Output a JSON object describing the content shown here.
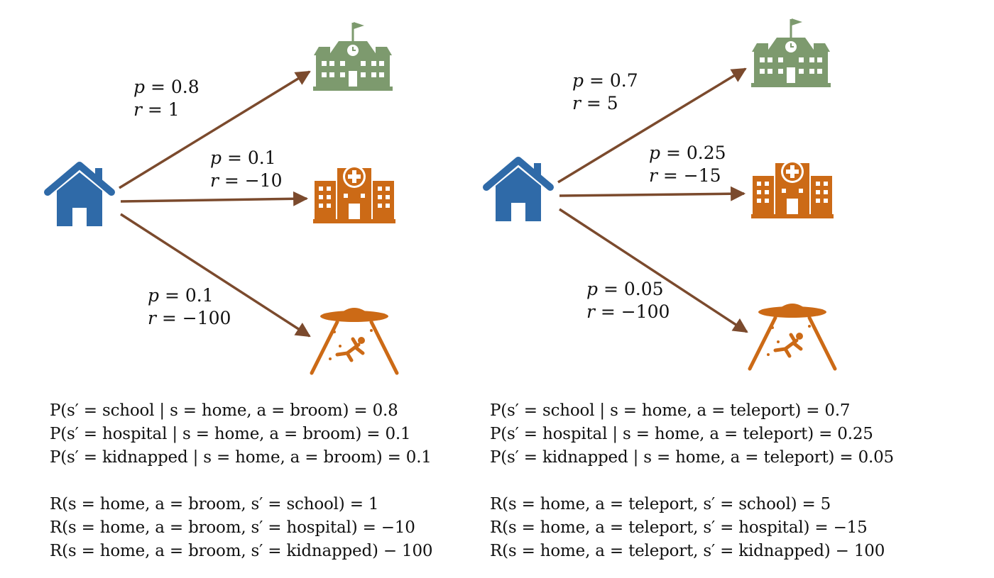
{
  "colors": {
    "arrow": "#7b4a2d",
    "home": "#2f6aa8",
    "school": "#7d9a6e",
    "hospital": "#cc6a16",
    "ufo": "#cc6a16"
  },
  "icons": [
    "home-icon",
    "school-icon",
    "hospital-icon",
    "ufo-abduction-icon"
  ],
  "left": {
    "action": "broom",
    "edges": [
      {
        "target": "school",
        "p": "0.8",
        "r": "1"
      },
      {
        "target": "hospital",
        "p": "0.1",
        "r": "−10"
      },
      {
        "target": "kidnapped",
        "p": "0.1",
        "r": "−100"
      }
    ],
    "transitions": [
      "P(s′ = school | s = home, a = broom) = 0.8",
      "P(s′ = hospital | s = home, a = broom) = 0.1",
      "P(s′ = kidnapped | s = home, a = broom) = 0.1"
    ],
    "rewards": [
      "R(s = home, a = broom, s′ = school) = 1",
      "R(s = home, a = broom, s′ = hospital) = −10",
      "R(s = home, a = broom, s′ = kidnapped) − 100"
    ]
  },
  "right": {
    "action": "teleport",
    "edges": [
      {
        "target": "school",
        "p": "0.7",
        "r": "5"
      },
      {
        "target": "hospital",
        "p": "0.25",
        "r": "−15"
      },
      {
        "target": "kidnapped",
        "p": "0.05",
        "r": "−100"
      }
    ],
    "transitions": [
      "P(s′ = school | s = home, a = teleport) = 0.7",
      "P(s′ = hospital | s = home, a = teleport) = 0.25",
      "P(s′ = kidnapped | s = home, a = teleport) = 0.05"
    ],
    "rewards": [
      "R(s = home, a = teleport, s′ = school) = 5",
      "R(s = home, a = teleport, s′ = hospital) = −15",
      "R(s = home, a = teleport, s′ = kidnapped) − 100"
    ]
  }
}
